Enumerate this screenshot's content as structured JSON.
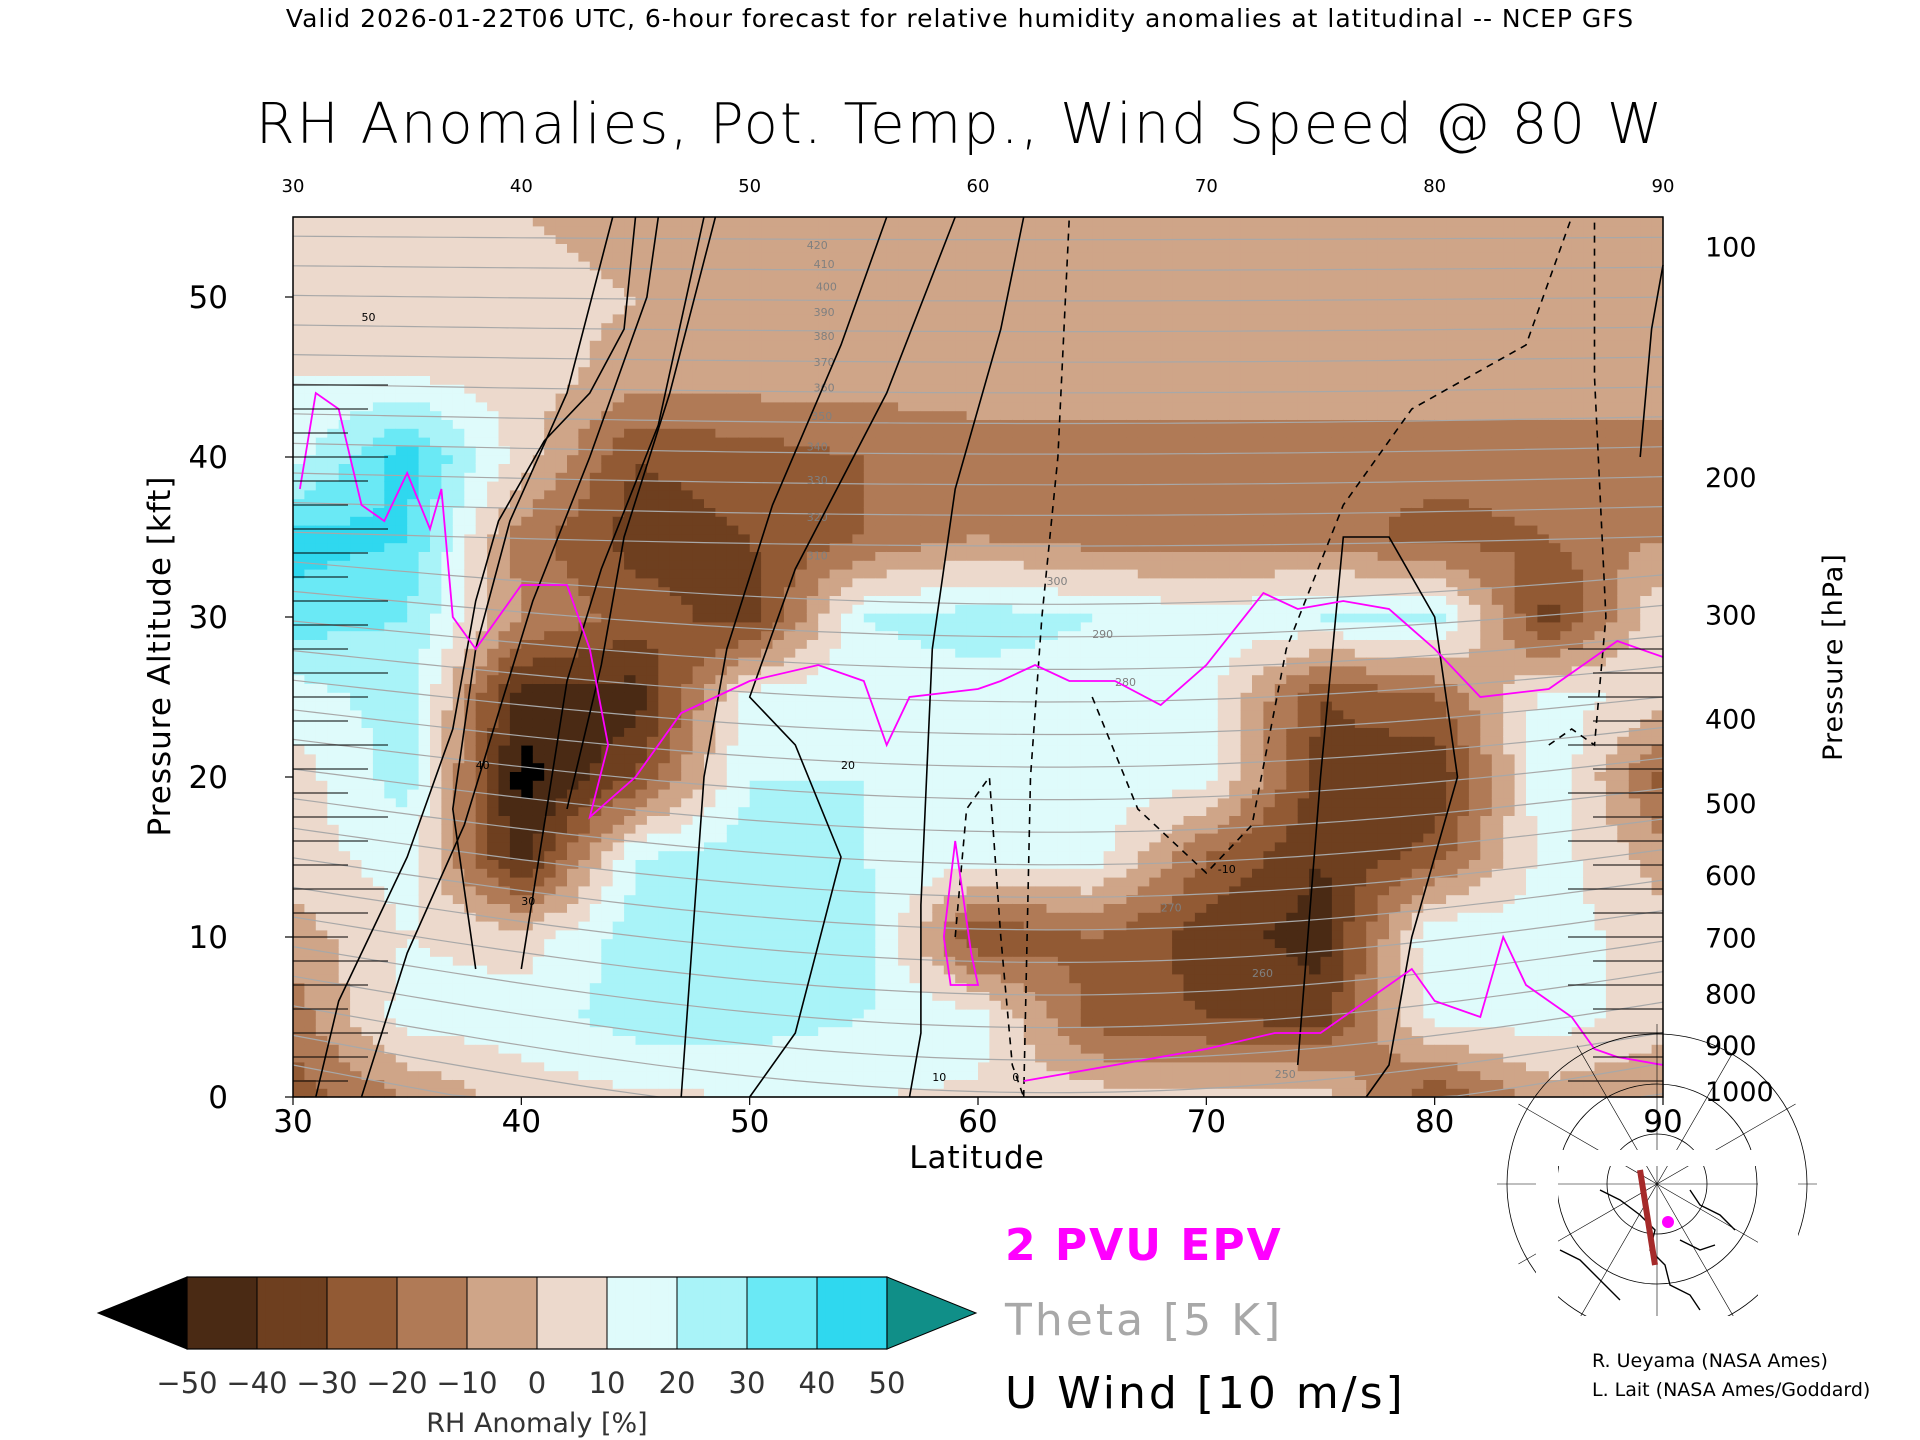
{
  "header": {
    "valid_line": "Valid 2026-01-22T06 UTC, 6-hour forecast for relative humidity anomalies at latitudinal -- NCEP GFS",
    "title": "RH Anomalies, Pot. Temp., Wind Speed @ 80 W"
  },
  "chart_data": {
    "type": "heatmap",
    "title": "RH Anomalies, Pot. Temp., Wind Speed @ 80 W",
    "xlabel": "Latitude",
    "ylabel": "Pressure Altitude [kft]",
    "y2label": "Pressure [hPa]",
    "xlim": [
      30,
      90
    ],
    "ylim": [
      0,
      55
    ],
    "x_ticks": [
      "30",
      "40",
      "50",
      "60",
      "70",
      "80",
      "90"
    ],
    "x_ticks_top": [
      "30",
      "40",
      "50",
      "60",
      "70",
      "80",
      "90"
    ],
    "y_ticks": [
      "0",
      "10",
      "20",
      "30",
      "40",
      "50"
    ],
    "y2_ticks": [
      {
        "label": "1000",
        "kft": 0.3
      },
      {
        "label": "900",
        "kft": 3.2
      },
      {
        "label": "800",
        "kft": 6.4
      },
      {
        "label": "700",
        "kft": 9.9
      },
      {
        "label": "600",
        "kft": 13.8
      },
      {
        "label": "500",
        "kft": 18.3
      },
      {
        "label": "400",
        "kft": 23.6
      },
      {
        "label": "300",
        "kft": 30.1
      },
      {
        "label": "200",
        "kft": 38.7
      },
      {
        "label": "100",
        "kft": 53.1
      }
    ],
    "colorbar": {
      "label": "RH Anomaly [%]",
      "ticks": [
        "−50",
        "−40",
        "−30",
        "−20",
        "−10",
        "0",
        "10",
        "20",
        "30",
        "40",
        "50"
      ],
      "colors": [
        "#4a2a14",
        "#6e3f1f",
        "#925a34",
        "#b07a56",
        "#cfa588",
        "#ecd9cc",
        "#dffbfb",
        "#a9f3f8",
        "#6ae9f5",
        "#2fd8ef",
        "#13b5d6",
        "#0a7fa8"
      ],
      "under_color": "#000000",
      "over_color": "#108f88"
    },
    "rh_grid": {
      "lats": [
        30,
        35,
        40,
        45,
        50,
        55,
        60,
        65,
        70,
        75,
        80,
        85,
        90
      ],
      "alts": [
        0,
        5,
        10,
        15,
        20,
        25,
        30,
        35,
        40,
        45,
        50,
        55
      ],
      "values": [
        [
          -25,
          -10,
          5,
          8,
          10,
          10,
          8,
          5,
          5,
          5,
          -30,
          -5,
          -10
        ],
        [
          -15,
          15,
          15,
          25,
          25,
          20,
          15,
          -25,
          -30,
          -35,
          15,
          15,
          5
        ],
        [
          -5,
          10,
          5,
          25,
          30,
          25,
          -30,
          -20,
          -35,
          -45,
          20,
          15,
          5
        ],
        [
          5,
          15,
          -45,
          20,
          25,
          20,
          15,
          15,
          -20,
          -40,
          -25,
          15,
          -5
        ],
        [
          5,
          25,
          -55,
          -30,
          20,
          20,
          15,
          15,
          15,
          -35,
          -40,
          20,
          -25
        ],
        [
          15,
          25,
          -45,
          -45,
          15,
          15,
          15,
          15,
          15,
          -30,
          -20,
          15,
          5
        ],
        [
          35,
          30,
          -10,
          -25,
          -35,
          20,
          25,
          20,
          15,
          20,
          25,
          -35,
          10
        ],
        [
          45,
          40,
          -15,
          -35,
          -30,
          -20,
          -10,
          -15,
          -15,
          -15,
          -25,
          -20,
          -10
        ],
        [
          15,
          45,
          5,
          -30,
          -25,
          -20,
          -15,
          -15,
          -15,
          -15,
          -15,
          -15,
          -15
        ],
        [
          10,
          10,
          5,
          -5,
          -5,
          -5,
          -5,
          -5,
          -5,
          -5,
          -5,
          -5,
          -5
        ],
        [
          5,
          5,
          5,
          0,
          -5,
          -5,
          -5,
          -5,
          -5,
          -5,
          -5,
          -5,
          -5
        ],
        [
          0,
          0,
          0,
          -5,
          -5,
          -5,
          -5,
          -5,
          -5,
          -5,
          -5,
          -5,
          -5
        ]
      ]
    },
    "theta_labels": [
      "420",
      "410",
      "400",
      "390",
      "380",
      "370",
      "360",
      "350",
      "340",
      "330",
      "320",
      "310",
      "300",
      "290",
      "280",
      "270",
      "260",
      "250"
    ],
    "wind_labels": [
      "50",
      "40",
      "30",
      "20",
      "10",
      "0",
      "-10"
    ],
    "epv_label": "2 PVU EPV"
  },
  "legend": {
    "epv": "2 PVU EPV",
    "theta": "Theta [5 K]",
    "wind": "U Wind [10 m/s]"
  },
  "credits": {
    "line1": "R. Ueyama (NASA Ames)",
    "line2": "L. Lait (NASA Ames/Goddard)"
  },
  "colors": {
    "epv": "#ff00ff",
    "theta": "#a8a8a8",
    "wind": "#000000",
    "track": "#a52a2a",
    "map_point": "#ff00ff"
  }
}
